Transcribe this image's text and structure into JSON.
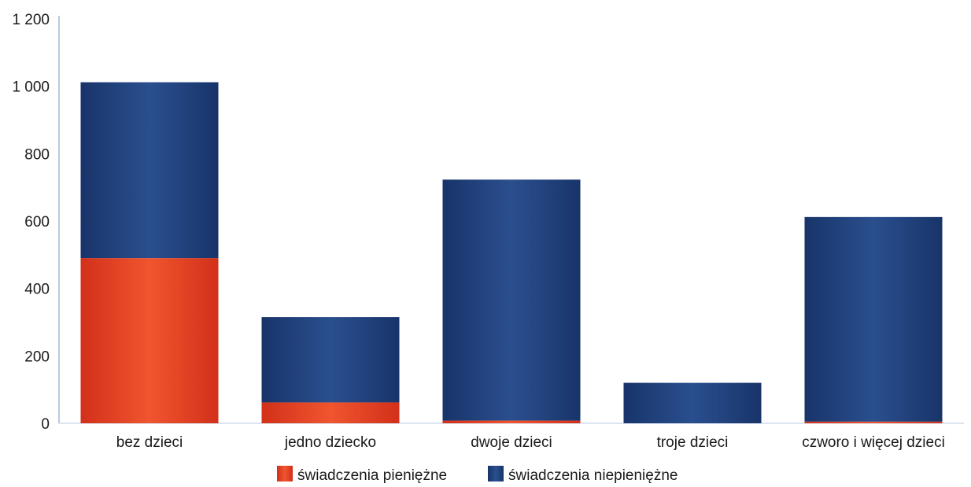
{
  "chart_data": {
    "type": "bar",
    "stacked": true,
    "categories": [
      "bez dzieci",
      "jedno dziecko",
      "dwoje dzieci",
      "troje dzieci",
      "czworo i więcej dzieci"
    ],
    "series": [
      {
        "name": "świadczenia pieniężne",
        "color": "#e8401c",
        "values": [
          490,
          62,
          8,
          0,
          5
        ]
      },
      {
        "name": "świadczenia niepieniężne",
        "color": "#1e3f7a",
        "values": [
          522,
          253,
          715,
          120,
          607
        ]
      }
    ],
    "yticks": [
      "0",
      "200",
      "400",
      "600",
      "800",
      "1 000",
      "1 200"
    ],
    "ylim": [
      0,
      1200
    ],
    "grid": false,
    "legend": "bottom-center"
  }
}
